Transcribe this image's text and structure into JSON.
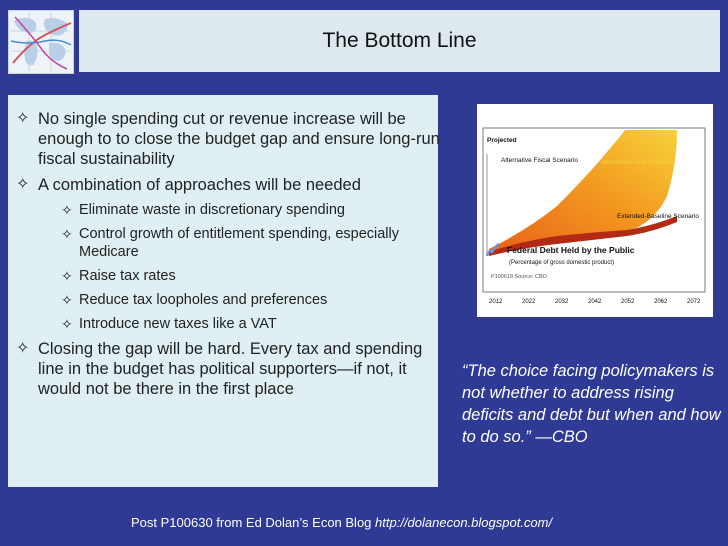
{
  "slide": {
    "title": "The Bottom Line",
    "bullets": [
      {
        "level": 1,
        "text": "No single spending cut or revenue increase will be enough to to close the budget gap and ensure long-run fiscal sustainability"
      },
      {
        "level": 1,
        "text": "A combination of approaches will be needed"
      },
      {
        "level": 2,
        "text": "Eliminate waste in discretionary spending"
      },
      {
        "level": 2,
        "text": "Control growth of entitlement spending, especially Medicare"
      },
      {
        "level": 2,
        "text": "Raise tax rates"
      },
      {
        "level": 2,
        "text": "Reduce tax loopholes and preferences"
      },
      {
        "level": 2,
        "text": "Introduce new taxes like a VAT"
      },
      {
        "level": 1,
        "text": "Closing the gap will be hard. Every tax and spending line in the budget has political supporters—if not, it would not be there in the first place"
      }
    ],
    "bullet_glyph": "✧",
    "quote": "“The choice facing policymakers is not whether to address rising deficits and debt but when and how to do so.”  —CBO",
    "footer": {
      "prefix": "Post P100630 from Ed Dolan’s Econ Blog ",
      "url": "http://dolanecon.blogspot.com/"
    }
  },
  "chart_data": {
    "type": "area",
    "title": "Federal Debt Held by the Public",
    "subtitle": "(Percentage of gross domestic product)",
    "label_projected": "Projected",
    "label_alternative": "Alternative Fiscal Scenario",
    "label_baseline": "Extended-Baseline Scenario",
    "label_inner": "Alternative Fiscal Scenario",
    "source": "P100618 Source: CBO",
    "x": [
      2012,
      2022,
      2032,
      2042,
      2052,
      2062,
      2072
    ],
    "colors": {
      "fill": "#f39a20",
      "fill_light": "#f7d23a",
      "baseline_band": "#b22a14",
      "history": "#6f95d4"
    }
  },
  "colors": {
    "background": "#2e3a93",
    "title_bar": "#dde9ee",
    "content_box": "#dfeff3"
  },
  "logo": {
    "icon": "world-map-icon"
  }
}
